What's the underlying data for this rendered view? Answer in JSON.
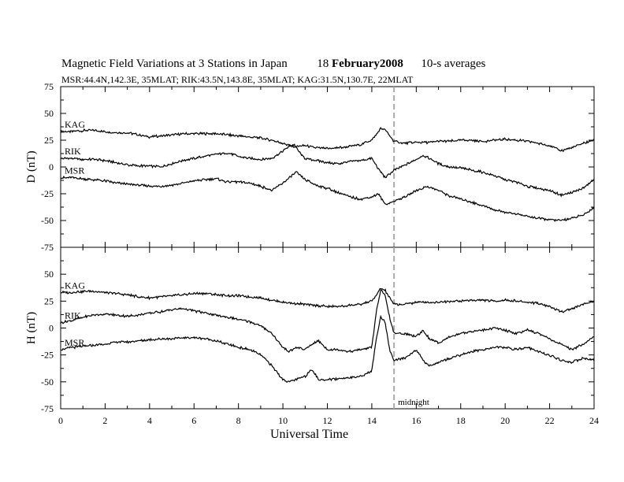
{
  "title": {
    "main": "Magnetic Field Variations at 3 Stations in Japan",
    "date_day": "18",
    "date_month_year": "February2008",
    "averaging": "10-s averages"
  },
  "subtitle": "MSR:44.4N,142.3E, 35MLAT;  RIK:43.5N,143.8E, 35MLAT;  KAG:31.5N,130.7E, 22MLAT",
  "chart_data": [
    {
      "type": "line",
      "panel": "top",
      "ylabel": "D (nT)",
      "ylim": [
        -75,
        75
      ],
      "yticks": [
        75,
        50,
        25,
        0,
        -25,
        -50,
        -75
      ],
      "xlim": [
        0,
        24
      ],
      "annotation_line_x": 15,
      "series": [
        {
          "name": "KAG",
          "x": [
            0,
            0.5,
            1,
            1.5,
            2,
            2.5,
            3,
            3.5,
            4,
            4.5,
            5,
            5.5,
            6,
            6.5,
            7,
            7.5,
            8,
            8.5,
            9,
            9.5,
            10,
            10.5,
            11,
            11.5,
            12,
            12.5,
            13,
            13.5,
            14,
            14.2,
            14.4,
            14.6,
            14.8,
            15,
            15.5,
            16,
            16.5,
            17,
            17.5,
            18,
            18.5,
            19,
            19.5,
            20,
            20.5,
            21,
            21.5,
            22,
            22.5,
            23,
            23.5,
            24
          ],
          "y": [
            33,
            33,
            34,
            34,
            33,
            32,
            32,
            30,
            28,
            29,
            30,
            31,
            31,
            31,
            31,
            30,
            29,
            28,
            27,
            25,
            22,
            19,
            20,
            18,
            17,
            18,
            19,
            21,
            25,
            30,
            36,
            35,
            29,
            24,
            22,
            23,
            23,
            24,
            24,
            25,
            25,
            24,
            25,
            26,
            25,
            24,
            22,
            20,
            15,
            18,
            22,
            25
          ]
        },
        {
          "name": "RIK",
          "x": [
            0,
            0.5,
            1,
            1.5,
            2,
            2.5,
            3,
            3.5,
            4,
            4.5,
            5,
            5.5,
            6,
            6.5,
            7,
            7.5,
            8,
            8.5,
            9,
            9.5,
            10,
            10.2,
            10.5,
            10.8,
            11,
            11.5,
            12,
            12.5,
            13,
            13.5,
            14,
            14.3,
            14.6,
            15,
            15.5,
            16,
            16.3,
            16.6,
            17,
            17.5,
            18,
            18.5,
            19,
            19.5,
            20,
            20.5,
            21,
            21.5,
            22,
            22.5,
            23,
            23.5,
            24
          ],
          "y": [
            8,
            8,
            7,
            7,
            6,
            4,
            2,
            1,
            1,
            0,
            3,
            6,
            8,
            10,
            12,
            13,
            10,
            8,
            7,
            8,
            15,
            18,
            21,
            12,
            8,
            6,
            4,
            3,
            5,
            6,
            8,
            -2,
            -10,
            -3,
            2,
            7,
            11,
            8,
            3,
            0,
            -1,
            -3,
            -5,
            -8,
            -12,
            -14,
            -18,
            -20,
            -22,
            -26,
            -24,
            -20,
            -12
          ]
        },
        {
          "name": "MSR",
          "x": [
            0,
            0.5,
            1,
            1.5,
            2,
            2.5,
            3,
            3.5,
            4,
            4.5,
            5,
            5.5,
            6,
            6.5,
            7,
            7.5,
            8,
            8.5,
            9,
            9.5,
            10,
            10.3,
            10.6,
            11,
            11.5,
            12,
            12.5,
            13,
            13.5,
            14,
            14.3,
            14.6,
            15,
            15.5,
            16,
            16.5,
            17,
            17.5,
            18,
            18.5,
            19,
            19.5,
            20,
            20.5,
            21,
            21.5,
            22,
            22.5,
            23,
            23.5,
            24
          ],
          "y": [
            -10,
            -10,
            -11,
            -12,
            -13,
            -15,
            -16,
            -17,
            -18,
            -18,
            -17,
            -15,
            -13,
            -12,
            -11,
            -14,
            -14,
            -15,
            -18,
            -22,
            -15,
            -10,
            -5,
            -12,
            -17,
            -20,
            -24,
            -28,
            -30,
            -28,
            -25,
            -35,
            -32,
            -28,
            -22,
            -18,
            -22,
            -27,
            -30,
            -33,
            -36,
            -40,
            -42,
            -44,
            -46,
            -48,
            -49,
            -50,
            -48,
            -45,
            -38
          ]
        }
      ]
    },
    {
      "type": "line",
      "panel": "bottom",
      "ylabel": "H (nT)",
      "ylim": [
        -75,
        75
      ],
      "yticks": [
        75,
        50,
        25,
        0,
        -25,
        -50,
        -75
      ],
      "xlim": [
        0,
        24
      ],
      "xticks": [
        0,
        2,
        4,
        6,
        8,
        10,
        12,
        14,
        16,
        18,
        20,
        22,
        24
      ],
      "xlabel": "Universal Time",
      "annotation": "midnight",
      "annotation_line_x": 15,
      "series": [
        {
          "name": "KAG",
          "x": [
            0,
            0.5,
            1,
            1.5,
            2,
            2.5,
            3,
            3.5,
            4,
            4.5,
            5,
            5.5,
            6,
            6.5,
            7,
            7.5,
            8,
            8.5,
            9,
            9.5,
            10,
            10.5,
            11,
            11.5,
            12,
            12.5,
            13,
            13.5,
            14,
            14.2,
            14.4,
            14.6,
            14.8,
            15,
            15.5,
            16,
            16.5,
            17,
            17.5,
            18,
            18.5,
            19,
            19.5,
            20,
            20.5,
            21,
            21.5,
            22,
            22.5,
            23,
            23.5,
            24
          ],
          "y": [
            33,
            33,
            34,
            34,
            33,
            32,
            31,
            29,
            28,
            29,
            30,
            31,
            32,
            32,
            31,
            30,
            30,
            29,
            28,
            26,
            24,
            23,
            22,
            21,
            20,
            20,
            21,
            22,
            25,
            30,
            37,
            35,
            28,
            22,
            22,
            24,
            24,
            24,
            25,
            25,
            26,
            26,
            25,
            26,
            25,
            24,
            23,
            20,
            15,
            18,
            22,
            25
          ]
        },
        {
          "name": "RIK",
          "x": [
            0,
            0.5,
            1,
            1.5,
            2,
            2.5,
            3,
            3.5,
            4,
            4.5,
            5,
            5.5,
            6,
            6.5,
            7,
            7.5,
            8,
            8.5,
            9,
            9.5,
            10,
            10.3,
            10.6,
            11,
            11.3,
            11.6,
            12,
            12.5,
            13,
            13.5,
            14,
            14.2,
            14.4,
            14.6,
            14.8,
            15,
            15.5,
            16,
            16.3,
            16.6,
            17,
            17.5,
            18,
            18.5,
            19,
            19.5,
            20,
            20.5,
            21,
            21.5,
            22,
            22.5,
            23,
            23.5,
            24
          ],
          "y": [
            5,
            7,
            10,
            12,
            13,
            12,
            11,
            12,
            14,
            15,
            17,
            18,
            16,
            14,
            12,
            10,
            8,
            6,
            2,
            -5,
            -18,
            -22,
            -18,
            -20,
            -15,
            -12,
            -20,
            -20,
            -22,
            -20,
            -18,
            15,
            35,
            30,
            10,
            -5,
            -5,
            -8,
            -2,
            -10,
            -14,
            -8,
            -5,
            -3,
            -2,
            0,
            -2,
            -5,
            -2,
            -5,
            -10,
            -15,
            -20,
            -15,
            -8
          ]
        },
        {
          "name": "MSR",
          "x": [
            0,
            0.5,
            1,
            1.5,
            2,
            2.5,
            3,
            3.5,
            4,
            4.5,
            5,
            5.5,
            6,
            6.5,
            7,
            7.5,
            8,
            8.5,
            9,
            9.5,
            10,
            10.3,
            10.6,
            11,
            11.3,
            11.6,
            12,
            12.5,
            13,
            13.5,
            14,
            14.2,
            14.4,
            14.6,
            14.8,
            15,
            15.5,
            16,
            16.3,
            16.6,
            17,
            17.5,
            18,
            18.5,
            19,
            19.5,
            20,
            20.5,
            21,
            21.5,
            22,
            22.5,
            23,
            23.5,
            24
          ],
          "y": [
            -20,
            -18,
            -17,
            -16,
            -15,
            -13,
            -13,
            -12,
            -11,
            -10,
            -10,
            -9,
            -9,
            -10,
            -12,
            -15,
            -18,
            -20,
            -25,
            -35,
            -48,
            -50,
            -48,
            -45,
            -38,
            -48,
            -48,
            -47,
            -46,
            -45,
            -40,
            -10,
            10,
            5,
            -20,
            -30,
            -28,
            -20,
            -30,
            -35,
            -32,
            -28,
            -25,
            -22,
            -20,
            -18,
            -18,
            -20,
            -18,
            -22,
            -25,
            -30,
            -32,
            -28,
            -30
          ]
        }
      ]
    }
  ]
}
